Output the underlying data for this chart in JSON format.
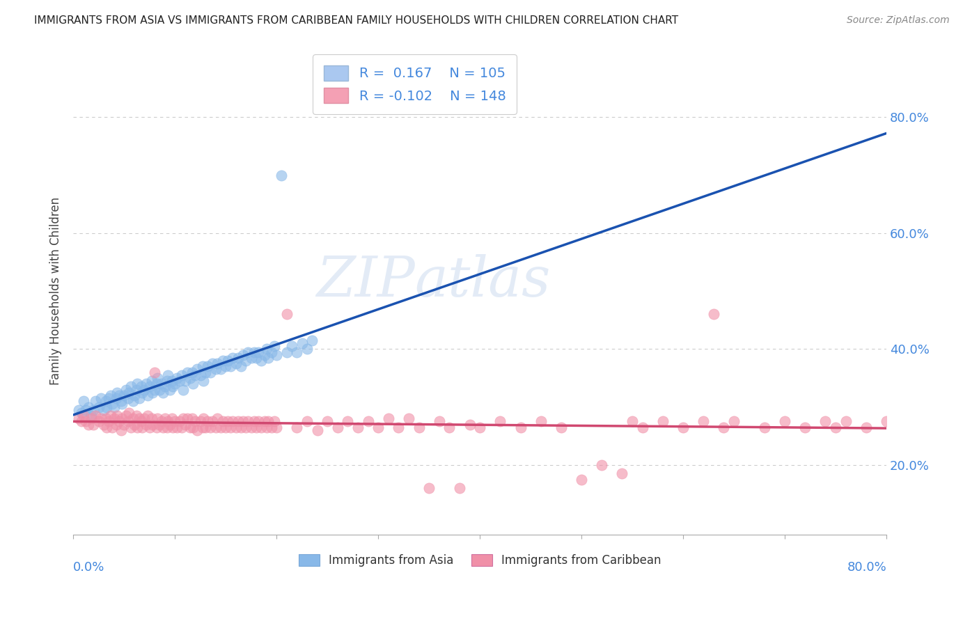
{
  "title": "IMMIGRANTS FROM ASIA VS IMMIGRANTS FROM CARIBBEAN FAMILY HOUSEHOLDS WITH CHILDREN CORRELATION CHART",
  "source": "Source: ZipAtlas.com",
  "ylabel": "Family Households with Children",
  "legend_asia": {
    "R": 0.167,
    "N": 105,
    "color": "#aac8f0"
  },
  "legend_caribbean": {
    "R": -0.102,
    "N": 148,
    "color": "#f4a0b4"
  },
  "watermark": "ZIPAtlas",
  "xlim": [
    0.0,
    0.8
  ],
  "ylim": [
    0.08,
    0.92
  ],
  "yticks": [
    0.2,
    0.4,
    0.6,
    0.8
  ],
  "ytick_labels": [
    "20.0%",
    "40.0%",
    "60.0%",
    "80.0%"
  ],
  "asia_scatter_color": "#88b8e8",
  "caribbean_scatter_color": "#f090a8",
  "asia_line_color": "#1a52b0",
  "caribbean_line_color": "#d04870",
  "background_color": "#ffffff",
  "asia_points": [
    [
      0.005,
      0.295
    ],
    [
      0.008,
      0.29
    ],
    [
      0.01,
      0.31
    ],
    [
      0.012,
      0.295
    ],
    [
      0.015,
      0.3
    ],
    [
      0.018,
      0.285
    ],
    [
      0.02,
      0.295
    ],
    [
      0.022,
      0.31
    ],
    [
      0.025,
      0.3
    ],
    [
      0.027,
      0.315
    ],
    [
      0.03,
      0.295
    ],
    [
      0.032,
      0.31
    ],
    [
      0.033,
      0.3
    ],
    [
      0.035,
      0.315
    ],
    [
      0.037,
      0.32
    ],
    [
      0.038,
      0.305
    ],
    [
      0.04,
      0.3
    ],
    [
      0.042,
      0.315
    ],
    [
      0.043,
      0.325
    ],
    [
      0.045,
      0.32
    ],
    [
      0.047,
      0.31
    ],
    [
      0.048,
      0.305
    ],
    [
      0.05,
      0.32
    ],
    [
      0.052,
      0.33
    ],
    [
      0.054,
      0.315
    ],
    [
      0.055,
      0.325
    ],
    [
      0.057,
      0.335
    ],
    [
      0.059,
      0.31
    ],
    [
      0.06,
      0.32
    ],
    [
      0.062,
      0.33
    ],
    [
      0.063,
      0.34
    ],
    [
      0.065,
      0.315
    ],
    [
      0.067,
      0.335
    ],
    [
      0.068,
      0.325
    ],
    [
      0.07,
      0.33
    ],
    [
      0.072,
      0.34
    ],
    [
      0.073,
      0.32
    ],
    [
      0.075,
      0.335
    ],
    [
      0.077,
      0.345
    ],
    [
      0.078,
      0.325
    ],
    [
      0.08,
      0.33
    ],
    [
      0.082,
      0.34
    ],
    [
      0.083,
      0.35
    ],
    [
      0.085,
      0.33
    ],
    [
      0.087,
      0.34
    ],
    [
      0.088,
      0.325
    ],
    [
      0.09,
      0.335
    ],
    [
      0.092,
      0.345
    ],
    [
      0.093,
      0.355
    ],
    [
      0.095,
      0.33
    ],
    [
      0.097,
      0.345
    ],
    [
      0.098,
      0.335
    ],
    [
      0.1,
      0.34
    ],
    [
      0.102,
      0.35
    ],
    [
      0.105,
      0.345
    ],
    [
      0.107,
      0.355
    ],
    [
      0.108,
      0.33
    ],
    [
      0.11,
      0.345
    ],
    [
      0.112,
      0.36
    ],
    [
      0.115,
      0.35
    ],
    [
      0.117,
      0.36
    ],
    [
      0.118,
      0.34
    ],
    [
      0.12,
      0.355
    ],
    [
      0.122,
      0.365
    ],
    [
      0.125,
      0.355
    ],
    [
      0.127,
      0.37
    ],
    [
      0.128,
      0.345
    ],
    [
      0.13,
      0.36
    ],
    [
      0.132,
      0.37
    ],
    [
      0.135,
      0.36
    ],
    [
      0.137,
      0.375
    ],
    [
      0.14,
      0.365
    ],
    [
      0.142,
      0.375
    ],
    [
      0.145,
      0.365
    ],
    [
      0.147,
      0.38
    ],
    [
      0.15,
      0.37
    ],
    [
      0.152,
      0.38
    ],
    [
      0.155,
      0.37
    ],
    [
      0.157,
      0.385
    ],
    [
      0.16,
      0.375
    ],
    [
      0.162,
      0.385
    ],
    [
      0.165,
      0.37
    ],
    [
      0.167,
      0.39
    ],
    [
      0.17,
      0.38
    ],
    [
      0.172,
      0.395
    ],
    [
      0.175,
      0.385
    ],
    [
      0.178,
      0.395
    ],
    [
      0.18,
      0.385
    ],
    [
      0.182,
      0.395
    ],
    [
      0.185,
      0.38
    ],
    [
      0.188,
      0.39
    ],
    [
      0.19,
      0.4
    ],
    [
      0.192,
      0.385
    ],
    [
      0.195,
      0.395
    ],
    [
      0.198,
      0.405
    ],
    [
      0.2,
      0.39
    ],
    [
      0.205,
      0.7
    ],
    [
      0.21,
      0.395
    ],
    [
      0.215,
      0.405
    ],
    [
      0.22,
      0.395
    ],
    [
      0.225,
      0.41
    ],
    [
      0.23,
      0.4
    ],
    [
      0.235,
      0.415
    ]
  ],
  "caribbean_points": [
    [
      0.005,
      0.28
    ],
    [
      0.008,
      0.275
    ],
    [
      0.01,
      0.285
    ],
    [
      0.012,
      0.275
    ],
    [
      0.015,
      0.27
    ],
    [
      0.018,
      0.28
    ],
    [
      0.02,
      0.27
    ],
    [
      0.022,
      0.285
    ],
    [
      0.025,
      0.275
    ],
    [
      0.027,
      0.28
    ],
    [
      0.03,
      0.27
    ],
    [
      0.032,
      0.28
    ],
    [
      0.033,
      0.265
    ],
    [
      0.035,
      0.275
    ],
    [
      0.037,
      0.285
    ],
    [
      0.038,
      0.265
    ],
    [
      0.04,
      0.28
    ],
    [
      0.042,
      0.27
    ],
    [
      0.043,
      0.285
    ],
    [
      0.045,
      0.275
    ],
    [
      0.047,
      0.26
    ],
    [
      0.048,
      0.28
    ],
    [
      0.05,
      0.27
    ],
    [
      0.052,
      0.285
    ],
    [
      0.054,
      0.275
    ],
    [
      0.055,
      0.29
    ],
    [
      0.057,
      0.265
    ],
    [
      0.059,
      0.28
    ],
    [
      0.06,
      0.27
    ],
    [
      0.062,
      0.285
    ],
    [
      0.063,
      0.265
    ],
    [
      0.065,
      0.28
    ],
    [
      0.067,
      0.275
    ],
    [
      0.068,
      0.265
    ],
    [
      0.07,
      0.28
    ],
    [
      0.072,
      0.27
    ],
    [
      0.073,
      0.285
    ],
    [
      0.075,
      0.265
    ],
    [
      0.077,
      0.28
    ],
    [
      0.078,
      0.27
    ],
    [
      0.08,
      0.36
    ],
    [
      0.082,
      0.265
    ],
    [
      0.083,
      0.28
    ],
    [
      0.085,
      0.27
    ],
    [
      0.087,
      0.275
    ],
    [
      0.088,
      0.265
    ],
    [
      0.09,
      0.28
    ],
    [
      0.092,
      0.265
    ],
    [
      0.093,
      0.275
    ],
    [
      0.095,
      0.27
    ],
    [
      0.097,
      0.28
    ],
    [
      0.098,
      0.265
    ],
    [
      0.1,
      0.275
    ],
    [
      0.102,
      0.265
    ],
    [
      0.105,
      0.275
    ],
    [
      0.107,
      0.265
    ],
    [
      0.108,
      0.28
    ],
    [
      0.11,
      0.27
    ],
    [
      0.112,
      0.28
    ],
    [
      0.115,
      0.265
    ],
    [
      0.117,
      0.28
    ],
    [
      0.118,
      0.265
    ],
    [
      0.12,
      0.275
    ],
    [
      0.122,
      0.26
    ],
    [
      0.125,
      0.275
    ],
    [
      0.127,
      0.265
    ],
    [
      0.128,
      0.28
    ],
    [
      0.13,
      0.265
    ],
    [
      0.132,
      0.275
    ],
    [
      0.135,
      0.265
    ],
    [
      0.137,
      0.275
    ],
    [
      0.14,
      0.265
    ],
    [
      0.142,
      0.28
    ],
    [
      0.145,
      0.265
    ],
    [
      0.147,
      0.275
    ],
    [
      0.15,
      0.265
    ],
    [
      0.152,
      0.275
    ],
    [
      0.155,
      0.265
    ],
    [
      0.157,
      0.275
    ],
    [
      0.16,
      0.265
    ],
    [
      0.162,
      0.275
    ],
    [
      0.165,
      0.265
    ],
    [
      0.167,
      0.275
    ],
    [
      0.17,
      0.265
    ],
    [
      0.172,
      0.275
    ],
    [
      0.175,
      0.265
    ],
    [
      0.178,
      0.275
    ],
    [
      0.18,
      0.265
    ],
    [
      0.182,
      0.275
    ],
    [
      0.185,
      0.265
    ],
    [
      0.188,
      0.275
    ],
    [
      0.19,
      0.265
    ],
    [
      0.192,
      0.275
    ],
    [
      0.195,
      0.265
    ],
    [
      0.198,
      0.275
    ],
    [
      0.2,
      0.265
    ],
    [
      0.21,
      0.46
    ],
    [
      0.22,
      0.265
    ],
    [
      0.23,
      0.275
    ],
    [
      0.24,
      0.26
    ],
    [
      0.25,
      0.275
    ],
    [
      0.26,
      0.265
    ],
    [
      0.27,
      0.275
    ],
    [
      0.28,
      0.265
    ],
    [
      0.29,
      0.275
    ],
    [
      0.3,
      0.265
    ],
    [
      0.31,
      0.28
    ],
    [
      0.32,
      0.265
    ],
    [
      0.33,
      0.28
    ],
    [
      0.34,
      0.265
    ],
    [
      0.35,
      0.16
    ],
    [
      0.36,
      0.275
    ],
    [
      0.37,
      0.265
    ],
    [
      0.38,
      0.16
    ],
    [
      0.39,
      0.27
    ],
    [
      0.4,
      0.265
    ],
    [
      0.42,
      0.275
    ],
    [
      0.44,
      0.265
    ],
    [
      0.46,
      0.275
    ],
    [
      0.48,
      0.265
    ],
    [
      0.5,
      0.175
    ],
    [
      0.52,
      0.2
    ],
    [
      0.54,
      0.185
    ],
    [
      0.55,
      0.275
    ],
    [
      0.56,
      0.265
    ],
    [
      0.58,
      0.275
    ],
    [
      0.6,
      0.265
    ],
    [
      0.62,
      0.275
    ],
    [
      0.63,
      0.46
    ],
    [
      0.64,
      0.265
    ],
    [
      0.65,
      0.275
    ],
    [
      0.68,
      0.265
    ],
    [
      0.7,
      0.275
    ],
    [
      0.72,
      0.265
    ],
    [
      0.74,
      0.275
    ],
    [
      0.75,
      0.265
    ],
    [
      0.76,
      0.275
    ],
    [
      0.78,
      0.265
    ],
    [
      0.8,
      0.275
    ]
  ]
}
